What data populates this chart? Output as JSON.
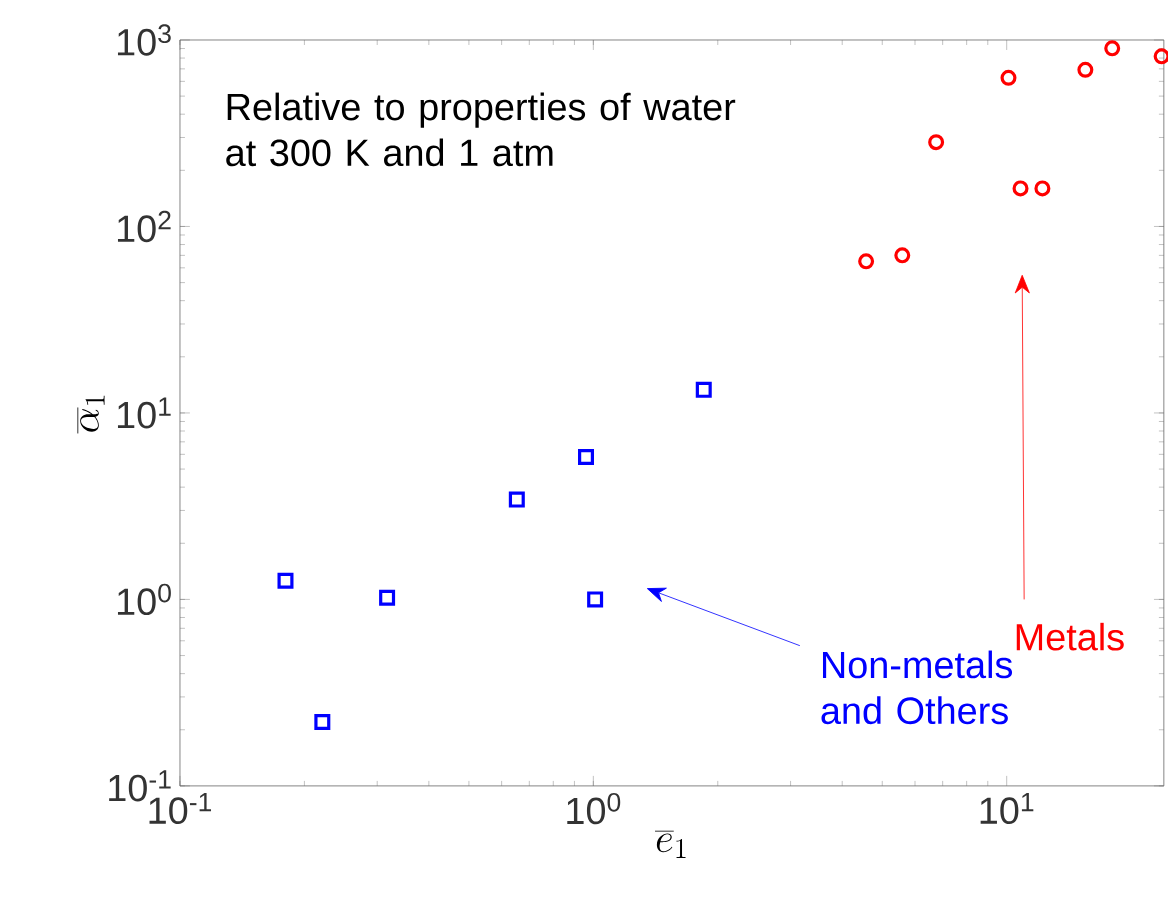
{
  "chart_data": {
    "type": "scatter",
    "xlabel": "\\overline{e}_1",
    "ylabel": "\\overline{\\alpha}_1",
    "log": "xy",
    "xlim": [
      0.1,
      24
    ],
    "ylim": [
      0.1,
      1000
    ],
    "xticks": [
      {
        "value": 0.1,
        "label": "10$^{-1}$"
      },
      {
        "value": 1,
        "label": "10$^{0}$"
      },
      {
        "value": 10,
        "label": "10$^{1}$"
      }
    ],
    "yticks": [
      {
        "value": 0.1,
        "label": "10$^{-1}$"
      },
      {
        "value": 1,
        "label": "10$^{0}$"
      },
      {
        "value": 10,
        "label": "10$^{1}$"
      },
      {
        "value": 100,
        "label": "10$^{2}$"
      },
      {
        "value": 1000,
        "label": "10$^{3}$"
      }
    ],
    "series": [
      {
        "color": "#ff0000",
        "marker": "circle",
        "x": [
          4.57,
          5.59,
          6.75,
          10.1,
          10.8,
          12.2,
          15.5,
          18.0,
          23.7
        ],
        "values": [
          65,
          70,
          283,
          627,
          160,
          160,
          692,
          902,
          817
        ]
      },
      {
        "color": "#0000ff",
        "marker": "square",
        "x": [
          0.18,
          0.221,
          0.317,
          0.653,
          0.96,
          1.01,
          1.85
        ],
        "values": [
          1.26,
          0.22,
          1.02,
          3.43,
          5.8,
          1.0,
          13.3
        ]
      }
    ],
    "annotations": [
      "Relative to properties of water at 300 K and 1 atm",
      "Metals",
      "Non-metals and Others"
    ]
  }
}
